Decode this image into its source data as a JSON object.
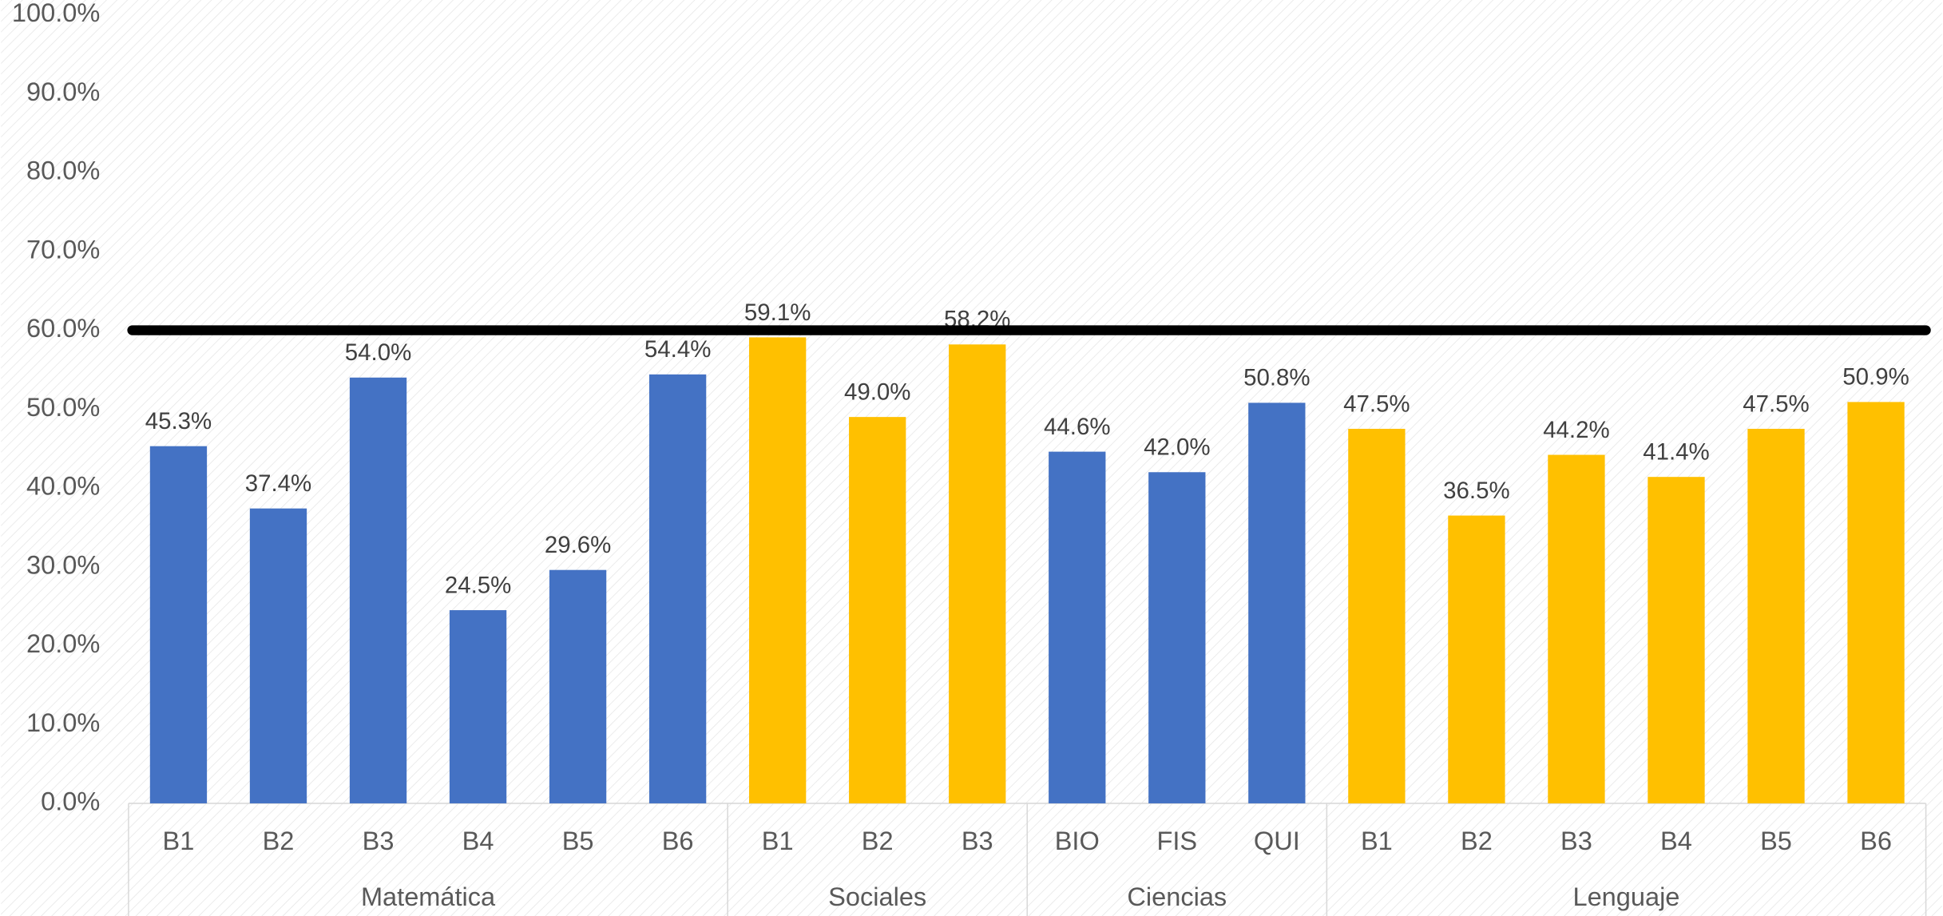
{
  "chart_data": {
    "type": "bar",
    "ylim": [
      0,
      100
    ],
    "yticks": [
      {
        "value": 0,
        "label": "0.0%"
      },
      {
        "value": 10,
        "label": "10.0%"
      },
      {
        "value": 20,
        "label": "20.0%"
      },
      {
        "value": 30,
        "label": "30.0%"
      },
      {
        "value": 40,
        "label": "40.0%"
      },
      {
        "value": 50,
        "label": "50.0%"
      },
      {
        "value": 60,
        "label": "60.0%"
      },
      {
        "value": 70,
        "label": "70.0%"
      },
      {
        "value": 80,
        "label": "80.0%"
      },
      {
        "value": 90,
        "label": "90.0%"
      },
      {
        "value": 100,
        "label": "100.0%"
      }
    ],
    "reference_line": {
      "value": 60,
      "color": "#000000"
    },
    "groups": [
      {
        "name": "Matemática",
        "color": "#4472c4",
        "categories": [
          "B1",
          "B2",
          "B3",
          "B4",
          "B5",
          "B6"
        ],
        "values": [
          45.3,
          37.4,
          54.0,
          24.5,
          29.6,
          54.4
        ],
        "value_labels": [
          "45.3%",
          "37.4%",
          "54.0%",
          "24.5%",
          "29.6%",
          "54.4%"
        ]
      },
      {
        "name": "Sociales",
        "color": "#ffc000",
        "categories": [
          "B1",
          "B2",
          "B3"
        ],
        "values": [
          59.1,
          49.0,
          58.2
        ],
        "value_labels": [
          "59.1%",
          "49.0%",
          "58.2%"
        ]
      },
      {
        "name": "Ciencias",
        "color": "#4472c4",
        "categories": [
          "BIO",
          "FIS",
          "QUI"
        ],
        "values": [
          44.6,
          42.0,
          50.8
        ],
        "value_labels": [
          "44.6%",
          "42.0%",
          "50.8%"
        ]
      },
      {
        "name": "Lenguaje",
        "color": "#ffc000",
        "categories": [
          "B1",
          "B2",
          "B3",
          "B4",
          "B5",
          "B6"
        ],
        "values": [
          47.5,
          36.5,
          44.2,
          41.4,
          47.5,
          50.9
        ],
        "value_labels": [
          "47.5%",
          "36.5%",
          "44.2%",
          "41.4%",
          "47.5%",
          "50.9%"
        ]
      }
    ]
  }
}
